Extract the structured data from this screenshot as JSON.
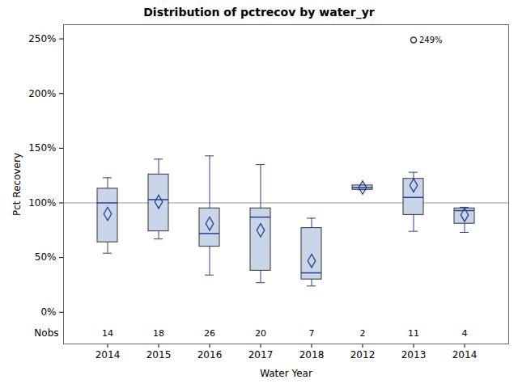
{
  "chart_data": {
    "type": "box",
    "title": "Distribution of pctrecov by water_yr",
    "xlabel": "Water Year",
    "ylabel": "Pct Recovery",
    "nobs_label": "Nobs",
    "categories": [
      "2014",
      "2015",
      "2016",
      "2017",
      "2018",
      "2012",
      "2013",
      "2014"
    ],
    "boxes": [
      {
        "whisker_low": 54,
        "q1": 64,
        "median": 100,
        "q3": 113,
        "whisker_high": 123,
        "mean": 90,
        "nobs": 14
      },
      {
        "whisker_low": 67,
        "q1": 74,
        "median": 103,
        "q3": 126,
        "whisker_high": 140,
        "mean": 101,
        "nobs": 18
      },
      {
        "whisker_low": 34,
        "q1": 60,
        "median": 72,
        "q3": 95,
        "whisker_high": 143,
        "mean": 81,
        "nobs": 26
      },
      {
        "whisker_low": 27,
        "q1": 38,
        "median": 87,
        "q3": 95,
        "whisker_high": 135,
        "mean": 75,
        "nobs": 20
      },
      {
        "whisker_low": 24,
        "q1": 30,
        "median": 36,
        "q3": 77,
        "whisker_high": 86,
        "mean": 47,
        "nobs": 7
      },
      {
        "whisker_low": 112,
        "q1": 112,
        "median": 114,
        "q3": 116,
        "whisker_high": 116,
        "mean": 114,
        "nobs": 2
      },
      {
        "whisker_low": 74,
        "q1": 89,
        "median": 105,
        "q3": 122,
        "whisker_high": 128,
        "mean": 116,
        "nobs": 11,
        "outliers": [
          249
        ],
        "outlier_labels": [
          "249%"
        ]
      },
      {
        "whisker_low": 73,
        "q1": 81,
        "median": 93,
        "q3": 95,
        "whisker_high": 96,
        "mean": 89,
        "nobs": 4
      }
    ],
    "reference_lines": [
      100
    ],
    "ylim": [
      -29,
      263
    ],
    "yticks": [
      {
        "value": 0,
        "label": "0%"
      },
      {
        "value": 50,
        "label": "50%"
      },
      {
        "value": 100,
        "label": "100%"
      },
      {
        "value": 150,
        "label": "150%"
      },
      {
        "value": 200,
        "label": "200%"
      },
      {
        "value": 250,
        "label": "250%"
      }
    ],
    "color": "#c9d5e8",
    "grid": false
  }
}
